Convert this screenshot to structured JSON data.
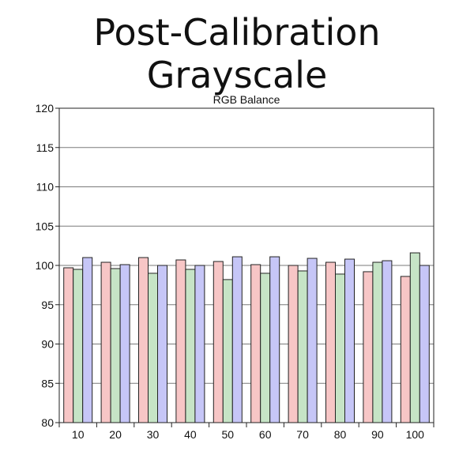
{
  "page": {
    "title": "Post-Calibration Grayscale"
  },
  "chart_data": {
    "type": "bar",
    "title": "RGB Balance",
    "xlabel": "",
    "ylabel": "",
    "ylim": [
      80,
      120
    ],
    "yticks": [
      80,
      85,
      90,
      95,
      100,
      105,
      110,
      115,
      120
    ],
    "grid": "horizontal",
    "legend": "none",
    "categories": [
      "10",
      "20",
      "30",
      "40",
      "50",
      "60",
      "70",
      "80",
      "90",
      "100"
    ],
    "series": [
      {
        "color": "#f7c6c6",
        "values": [
          99.7,
          100.4,
          101.0,
          100.7,
          100.5,
          100.1,
          100.0,
          100.4,
          99.2,
          98.6
        ]
      },
      {
        "color": "#c6e4c6",
        "values": [
          99.5,
          99.6,
          99.0,
          99.5,
          98.2,
          99.0,
          99.3,
          98.9,
          100.4,
          101.6
        ]
      },
      {
        "color": "#c6c6f7",
        "values": [
          101.0,
          100.1,
          100.0,
          100.0,
          101.1,
          101.1,
          100.9,
          100.8,
          100.6,
          100.0
        ]
      }
    ]
  }
}
